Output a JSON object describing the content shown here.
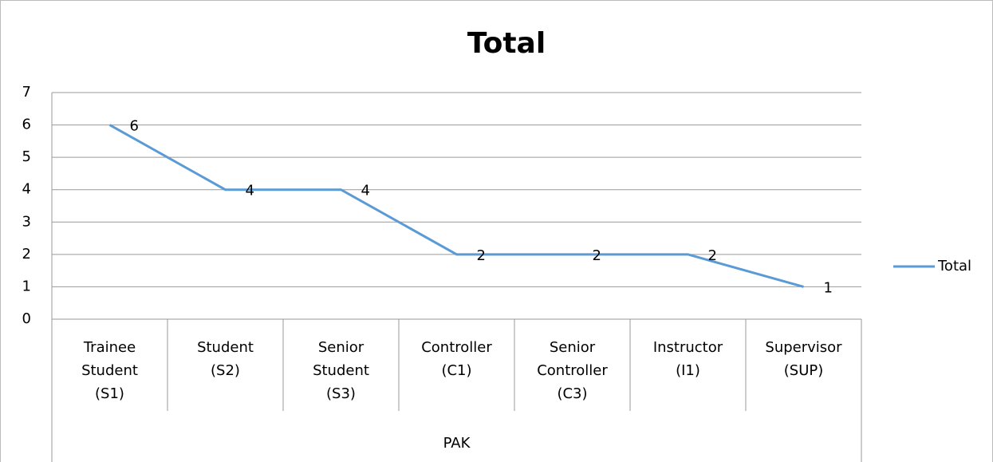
{
  "chart_data": {
    "type": "line",
    "title": "Total",
    "categories": [
      "Trainee Student (S1)",
      "Student (S2)",
      "Senior Student (S3)",
      "Controller (C1)",
      "Senior Controller (C3)",
      "Instructor (I1)",
      "Supervisor (SUP)"
    ],
    "category_group": "PAK",
    "series": [
      {
        "name": "Total",
        "color": "#5b9bd5",
        "values": [
          6,
          4,
          4,
          2,
          2,
          2,
          1
        ]
      }
    ],
    "ylim": [
      0,
      7
    ],
    "yticks": [
      0,
      1,
      2,
      3,
      4,
      5,
      6,
      7
    ],
    "grid": true,
    "legend": "right"
  }
}
